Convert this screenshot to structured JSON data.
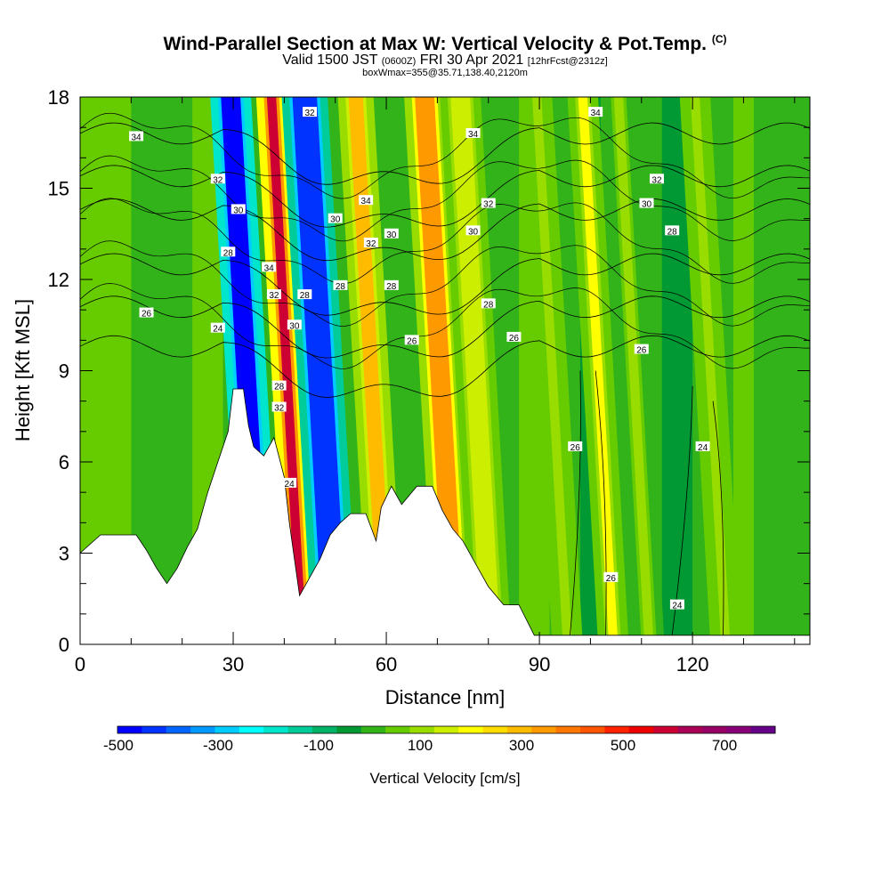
{
  "header": {
    "title_main": "Wind-Parallel Section at Max W: Vertical Velocity & Pot.Temp.",
    "title_copyright": "(C)",
    "valid_prefix": "Valid 1500 JST",
    "valid_utc": "(0600Z)",
    "valid_date": "FRI 30 Apr 2021",
    "forecast_info": "[12hrFcst@2312z]",
    "box_info": "boxWmax=355@35.71,138.40,2120m"
  },
  "chart_data": {
    "type": "heatmap",
    "xlabel": "Distance [nm]",
    "ylabel": "Height [Kft MSL]",
    "xlim": [
      0,
      143
    ],
    "ylim": [
      0,
      18
    ],
    "x_ticks": [
      0,
      30,
      60,
      90,
      120
    ],
    "y_ticks": [
      0,
      3,
      6,
      9,
      12,
      15,
      18
    ],
    "colorbar": {
      "label": "Vertical Velocity [cm/s]",
      "tick_labels": [
        "-500",
        "-300",
        "-100",
        "100",
        "300",
        "500",
        "700"
      ],
      "colors": [
        "#0000ff",
        "#0033ff",
        "#0066ff",
        "#0099ff",
        "#00ccff",
        "#00ffff",
        "#00e6cc",
        "#00cc99",
        "#00b366",
        "#009933",
        "#33b31a",
        "#66cc00",
        "#99dd00",
        "#ccee00",
        "#ffff00",
        "#ffdd00",
        "#ffbb00",
        "#ff9900",
        "#ff7700",
        "#ff5500",
        "#ff2200",
        "#ee0000",
        "#cc0033",
        "#aa0055",
        "#990066",
        "#880077",
        "#660088"
      ]
    },
    "terrain": [
      [
        0,
        3
      ],
      [
        4,
        3.6
      ],
      [
        11,
        3.6
      ],
      [
        13,
        3.1
      ],
      [
        15,
        2.5
      ],
      [
        17,
        2
      ],
      [
        19,
        2.5
      ],
      [
        21,
        3.2
      ],
      [
        23,
        3.8
      ],
      [
        25,
        5
      ],
      [
        27,
        6
      ],
      [
        29,
        7
      ],
      [
        30,
        8.4
      ],
      [
        32,
        8.4
      ],
      [
        33,
        7.2
      ],
      [
        34,
        6.5
      ],
      [
        36,
        6.2
      ],
      [
        38,
        6.8
      ],
      [
        40,
        5.5
      ],
      [
        41,
        4
      ],
      [
        43,
        1.6
      ],
      [
        45,
        2.2
      ],
      [
        47,
        2.8
      ],
      [
        49,
        3.6
      ],
      [
        51,
        4
      ],
      [
        53,
        4.3
      ],
      [
        56,
        4.3
      ],
      [
        58,
        3.4
      ],
      [
        59,
        4.5
      ],
      [
        61,
        5.2
      ],
      [
        63,
        4.6
      ],
      [
        66,
        5.2
      ],
      [
        69,
        5.2
      ],
      [
        71,
        4.4
      ],
      [
        73,
        3.8
      ],
      [
        75,
        3.4
      ],
      [
        77,
        2.8
      ],
      [
        80,
        1.9
      ],
      [
        83,
        1.3
      ],
      [
        86,
        1.3
      ],
      [
        89,
        0.3
      ],
      [
        143,
        0.3
      ]
    ],
    "velocity_bands": [
      {
        "x0": 33,
        "x1": 38,
        "value": -500
      },
      {
        "x0": 42,
        "x1": 45,
        "value": 600
      },
      {
        "x0": 47,
        "x1": 53,
        "value": -450
      },
      {
        "x0": 58,
        "x1": 62,
        "value": 280
      },
      {
        "x0": 71,
        "x1": 76,
        "value": 320
      },
      {
        "x0": 78,
        "x1": 83,
        "value": 150
      },
      {
        "x0": 103,
        "x1": 106,
        "value": 200
      },
      {
        "x0": 94,
        "x1": 97,
        "value": 120
      },
      {
        "x0": 110,
        "x1": 113,
        "value": 80
      },
      {
        "x0": 125,
        "x1": 128,
        "value": 100
      }
    ],
    "theta_contours": [
      {
        "label": "24",
        "y_left": 9.8
      },
      {
        "label": "26",
        "y_left": 11.1
      },
      {
        "label": "28",
        "y_left": 12.5
      },
      {
        "label": "30",
        "y_left": 14.3
      },
      {
        "label": "32",
        "y_left": 15.4
      },
      {
        "label": "34",
        "y_left": 16.8
      }
    ],
    "contour_labels": [
      {
        "text": "34",
        "x": 11,
        "y": 16.7
      },
      {
        "text": "32",
        "x": 27,
        "y": 15.3
      },
      {
        "text": "30",
        "x": 31,
        "y": 14.3
      },
      {
        "text": "28",
        "x": 29,
        "y": 12.9
      },
      {
        "text": "26",
        "x": 13,
        "y": 10.9
      },
      {
        "text": "24",
        "x": 27,
        "y": 10.4
      },
      {
        "text": "32",
        "x": 45,
        "y": 17.5
      },
      {
        "text": "34",
        "x": 37,
        "y": 12.4
      },
      {
        "text": "32",
        "x": 38,
        "y": 11.5
      },
      {
        "text": "28",
        "x": 44,
        "y": 11.5
      },
      {
        "text": "30",
        "x": 42,
        "y": 10.5
      },
      {
        "text": "28",
        "x": 39,
        "y": 8.5
      },
      {
        "text": "32",
        "x": 39,
        "y": 7.8
      },
      {
        "text": "24",
        "x": 41,
        "y": 5.3
      },
      {
        "text": "30",
        "x": 50,
        "y": 14
      },
      {
        "text": "28",
        "x": 51,
        "y": 11.8
      },
      {
        "text": "34",
        "x": 56,
        "y": 14.6
      },
      {
        "text": "32",
        "x": 57,
        "y": 13.2
      },
      {
        "text": "30",
        "x": 61,
        "y": 13.5
      },
      {
        "text": "28",
        "x": 61,
        "y": 11.8
      },
      {
        "text": "26",
        "x": 65,
        "y": 10
      },
      {
        "text": "34",
        "x": 77,
        "y": 16.8
      },
      {
        "text": "32",
        "x": 80,
        "y": 14.5
      },
      {
        "text": "30",
        "x": 77,
        "y": 13.6
      },
      {
        "text": "28",
        "x": 80,
        "y": 11.2
      },
      {
        "text": "26",
        "x": 85,
        "y": 10.1
      },
      {
        "text": "34",
        "x": 101,
        "y": 17.5
      },
      {
        "text": "32",
        "x": 113,
        "y": 15.3
      },
      {
        "text": "30",
        "x": 111,
        "y": 14.5
      },
      {
        "text": "28",
        "x": 116,
        "y": 13.6
      },
      {
        "text": "26",
        "x": 110,
        "y": 9.7
      },
      {
        "text": "26",
        "x": 97,
        "y": 6.5
      },
      {
        "text": "24",
        "x": 122,
        "y": 6.5
      },
      {
        "text": "26",
        "x": 104,
        "y": 2.2
      },
      {
        "text": "24",
        "x": 117,
        "y": 1.3
      }
    ]
  }
}
